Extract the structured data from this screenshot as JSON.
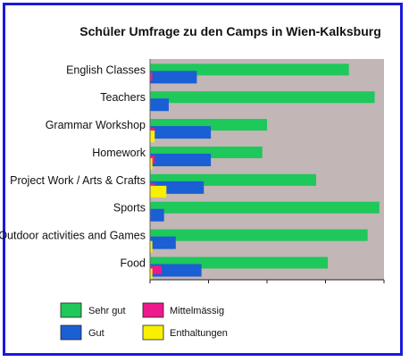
{
  "chart_data": {
    "type": "bar",
    "orientation": "horizontal",
    "title": "Schüler Umfrage zu den Camps in Wien-Kalksburg",
    "xlabel": "",
    "ylabel": "",
    "categories": [
      "English Classes",
      "Teachers",
      "Grammar Workshop",
      "Homework",
      "Project Work / Arts & Crafts",
      "Sports",
      "Outdoor activities and Games",
      "Food"
    ],
    "xlim": [
      0,
      100
    ],
    "grid": false,
    "legend_position": "bottom",
    "series": [
      {
        "name": "Sehr gut",
        "color": "#1ec85a",
        "values": [
          85,
          96,
          50,
          48,
          71,
          98,
          93,
          76
        ]
      },
      {
        "name": "Gut",
        "color": "#1a5fd4",
        "values": [
          20,
          8,
          26,
          26,
          23,
          6,
          11,
          22
        ]
      },
      {
        "name": "Mittelmässig",
        "color": "#ee1a8c",
        "values": [
          1,
          0,
          2,
          2,
          2,
          0,
          0,
          5
        ]
      },
      {
        "name": "Enthaltungen",
        "color": "#f8f000",
        "values": [
          0,
          0,
          2,
          1,
          7,
          0,
          1,
          1
        ]
      }
    ],
    "plot_background": "#c2b6b6"
  }
}
